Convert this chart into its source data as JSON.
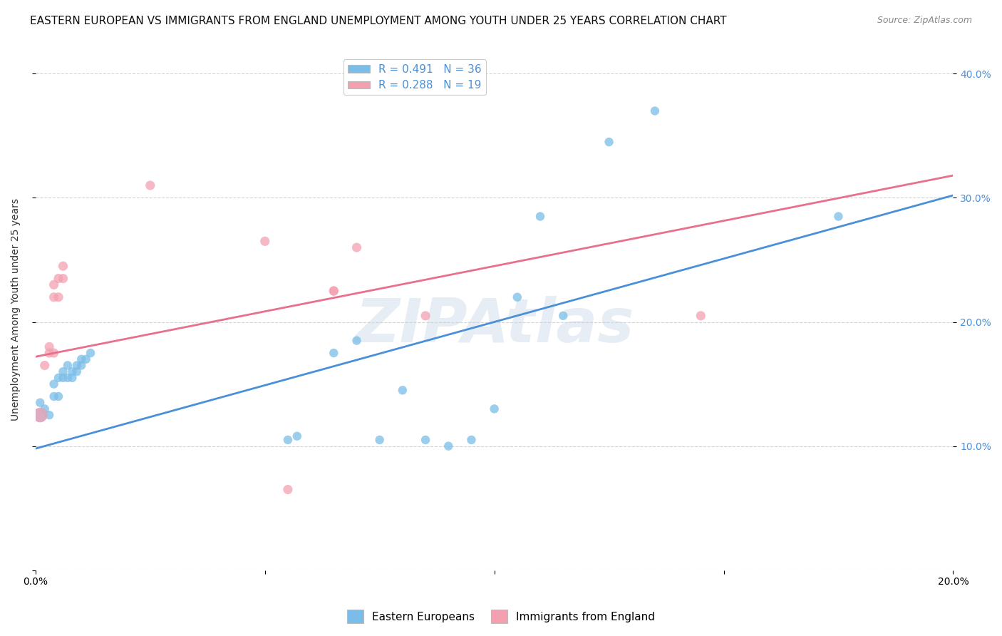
{
  "title": "EASTERN EUROPEAN VS IMMIGRANTS FROM ENGLAND UNEMPLOYMENT AMONG YOUTH UNDER 25 YEARS CORRELATION CHART",
  "source": "Source: ZipAtlas.com",
  "ylabel": "Unemployment Among Youth under 25 years",
  "xlim": [
    0,
    0.2
  ],
  "ylim": [
    0,
    0.42
  ],
  "blue_R": 0.491,
  "blue_N": 36,
  "pink_R": 0.288,
  "pink_N": 19,
  "blue_color": "#7abde8",
  "pink_color": "#f4a0b0",
  "blue_line_color": "#4a90d9",
  "pink_line_color": "#e8708a",
  "watermark": "ZIPAtlas",
  "blue_points": [
    [
      0.001,
      0.125
    ],
    [
      0.001,
      0.135
    ],
    [
      0.002,
      0.13
    ],
    [
      0.003,
      0.125
    ],
    [
      0.004,
      0.14
    ],
    [
      0.004,
      0.15
    ],
    [
      0.005,
      0.14
    ],
    [
      0.005,
      0.155
    ],
    [
      0.006,
      0.155
    ],
    [
      0.006,
      0.16
    ],
    [
      0.007,
      0.155
    ],
    [
      0.007,
      0.165
    ],
    [
      0.008,
      0.155
    ],
    [
      0.008,
      0.16
    ],
    [
      0.009,
      0.165
    ],
    [
      0.009,
      0.16
    ],
    [
      0.01,
      0.165
    ],
    [
      0.01,
      0.17
    ],
    [
      0.011,
      0.17
    ],
    [
      0.012,
      0.175
    ],
    [
      0.055,
      0.105
    ],
    [
      0.057,
      0.108
    ],
    [
      0.065,
      0.175
    ],
    [
      0.07,
      0.185
    ],
    [
      0.075,
      0.105
    ],
    [
      0.08,
      0.145
    ],
    [
      0.085,
      0.105
    ],
    [
      0.09,
      0.1
    ],
    [
      0.095,
      0.105
    ],
    [
      0.1,
      0.13
    ],
    [
      0.105,
      0.22
    ],
    [
      0.11,
      0.285
    ],
    [
      0.115,
      0.205
    ],
    [
      0.125,
      0.345
    ],
    [
      0.135,
      0.37
    ],
    [
      0.175,
      0.285
    ]
  ],
  "pink_points": [
    [
      0.001,
      0.125
    ],
    [
      0.002,
      0.165
    ],
    [
      0.003,
      0.175
    ],
    [
      0.003,
      0.18
    ],
    [
      0.004,
      0.175
    ],
    [
      0.004,
      0.22
    ],
    [
      0.004,
      0.23
    ],
    [
      0.005,
      0.22
    ],
    [
      0.005,
      0.235
    ],
    [
      0.006,
      0.235
    ],
    [
      0.006,
      0.245
    ],
    [
      0.025,
      0.31
    ],
    [
      0.05,
      0.265
    ],
    [
      0.065,
      0.225
    ],
    [
      0.065,
      0.225
    ],
    [
      0.07,
      0.26
    ],
    [
      0.085,
      0.205
    ],
    [
      0.145,
      0.205
    ],
    [
      0.055,
      0.065
    ]
  ],
  "blue_intercept": 0.098,
  "blue_slope": 1.02,
  "pink_intercept": 0.172,
  "pink_slope": 0.73,
  "legend_labels": [
    "Eastern Europeans",
    "Immigrants from England"
  ],
  "background_color": "#ffffff",
  "grid_color": "#d0d0d0",
  "title_fontsize": 11,
  "axis_fontsize": 10,
  "tick_fontsize": 10,
  "legend_fontsize": 11
}
